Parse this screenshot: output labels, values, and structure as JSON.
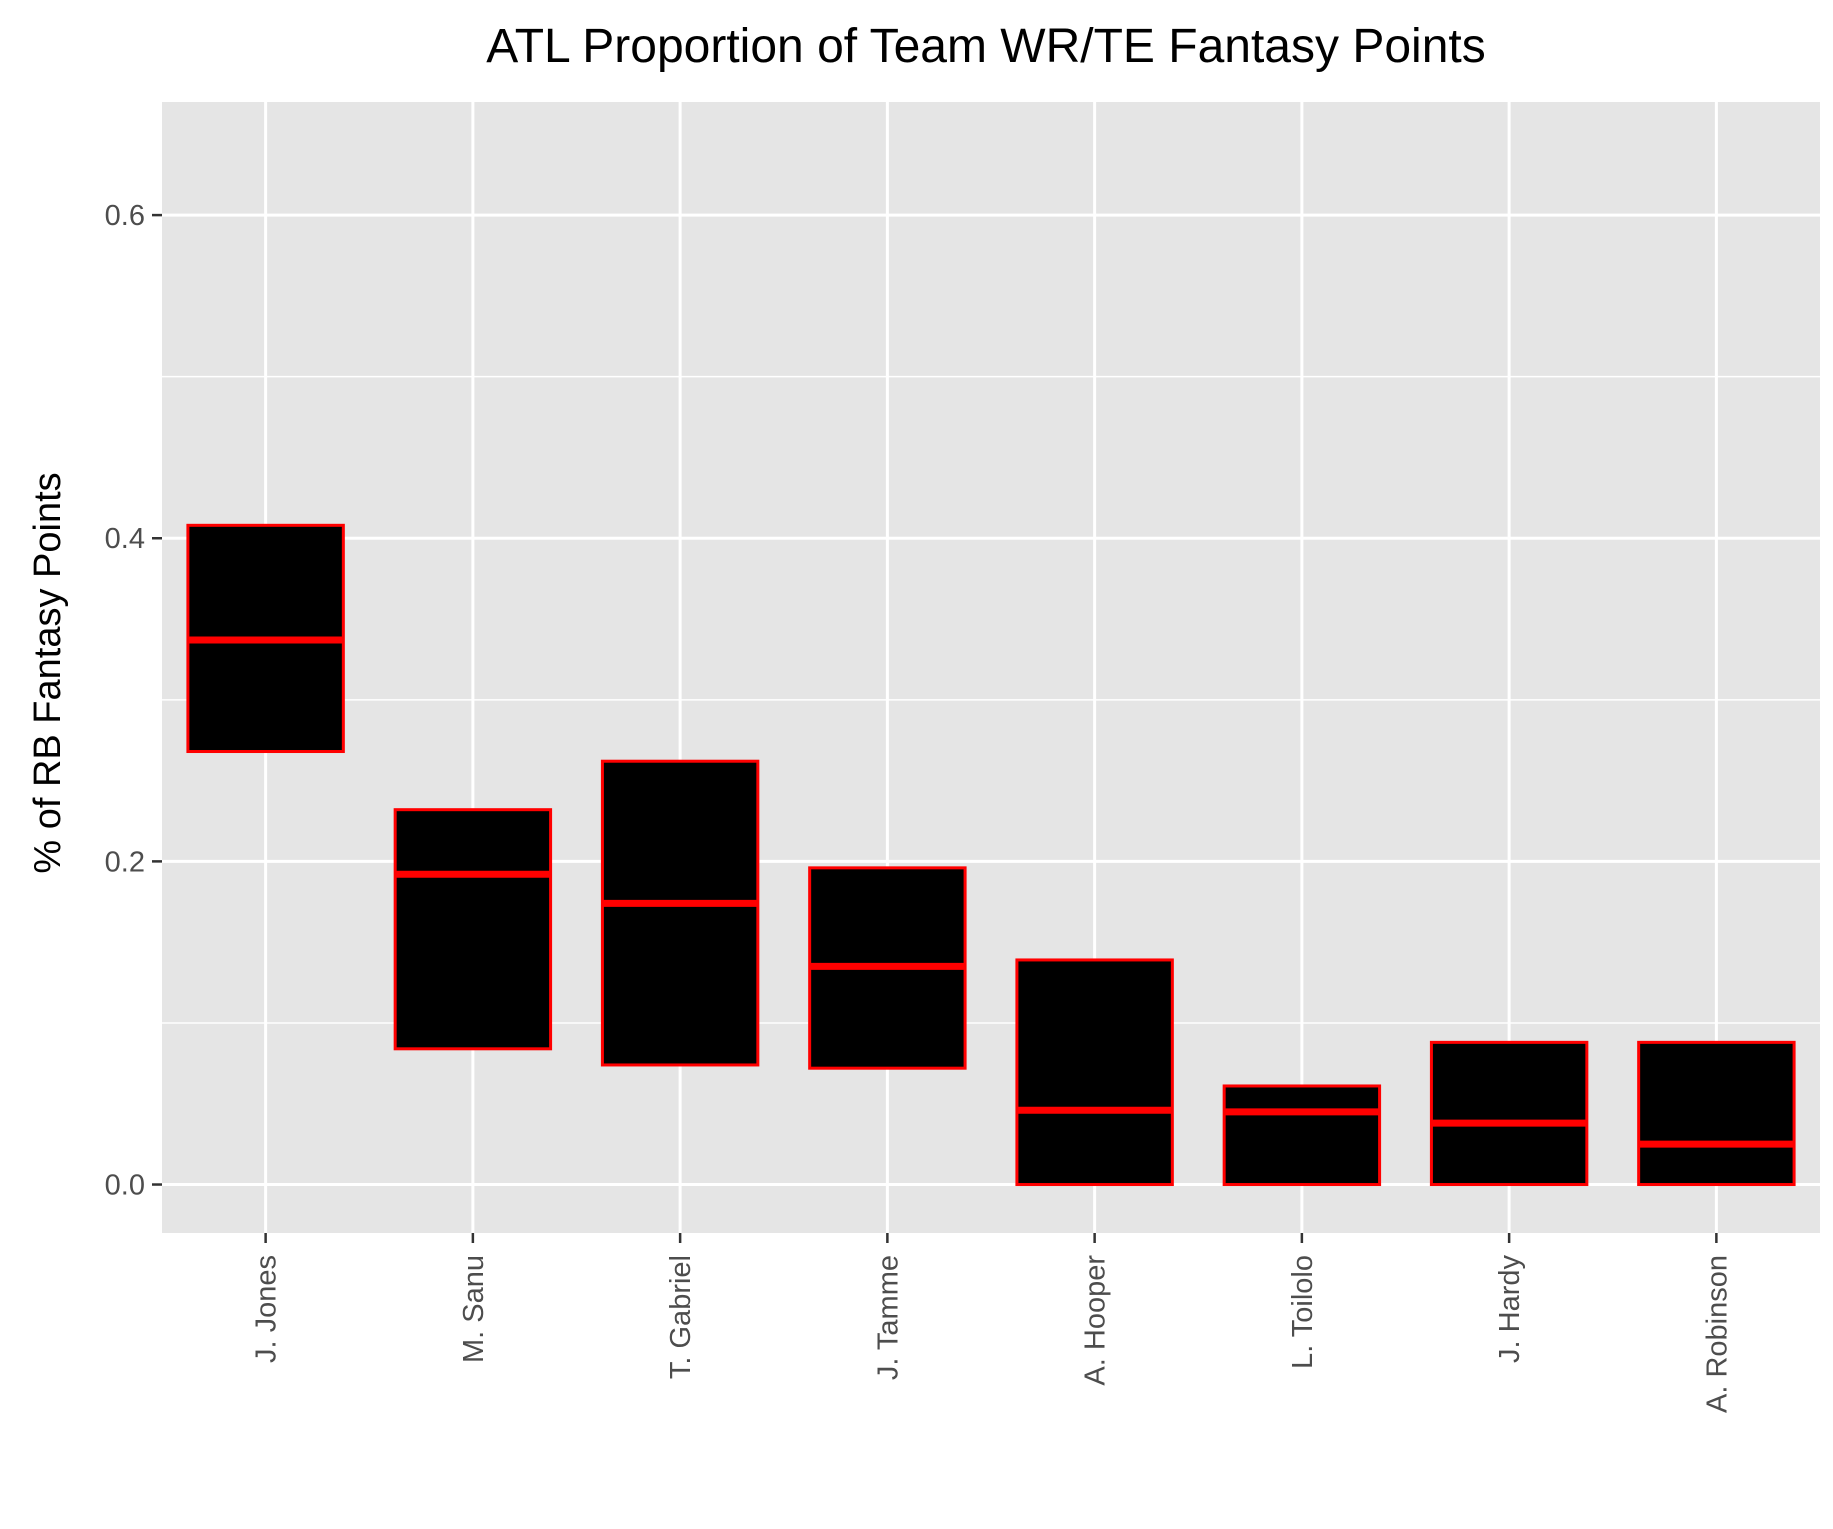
{
  "chart_data": {
    "type": "box",
    "title": "ATL Proportion of Team WR/TE Fantasy Points",
    "xlabel": "",
    "ylabel": "% of RB Fantasy Points",
    "ylim": [
      -0.03,
      0.67
    ],
    "yticks": [
      0.0,
      0.2,
      0.4,
      0.6
    ],
    "ytick_labels": [
      "0.0",
      "0.2",
      "0.4",
      "0.6"
    ],
    "grid": true,
    "legend": "none",
    "box_fill": "#000000",
    "box_outline": "#ff0000",
    "panel_background": "#e5e5e5",
    "categories": [
      "J. Jones",
      "M. Sanu",
      "T. Gabriel",
      "J. Tamme",
      "A. Hooper",
      "L. Toilolo",
      "J. Hardy",
      "A. Robinson"
    ],
    "boxes": [
      {
        "category": "J. Jones",
        "lower": 0.268,
        "median": 0.337,
        "upper": 0.408
      },
      {
        "category": "M. Sanu",
        "lower": 0.084,
        "median": 0.192,
        "upper": 0.232
      },
      {
        "category": "T. Gabriel",
        "lower": 0.074,
        "median": 0.174,
        "upper": 0.262
      },
      {
        "category": "J. Tamme",
        "lower": 0.072,
        "median": 0.135,
        "upper": 0.196
      },
      {
        "category": "A. Hooper",
        "lower": 0.0,
        "median": 0.046,
        "upper": 0.139
      },
      {
        "category": "L. Toilolo",
        "lower": 0.0,
        "median": 0.045,
        "upper": 0.061
      },
      {
        "category": "J. Hardy",
        "lower": 0.0,
        "median": 0.038,
        "upper": 0.088
      },
      {
        "category": "A. Robinson",
        "lower": 0.0,
        "median": 0.025,
        "upper": 0.088
      }
    ]
  }
}
